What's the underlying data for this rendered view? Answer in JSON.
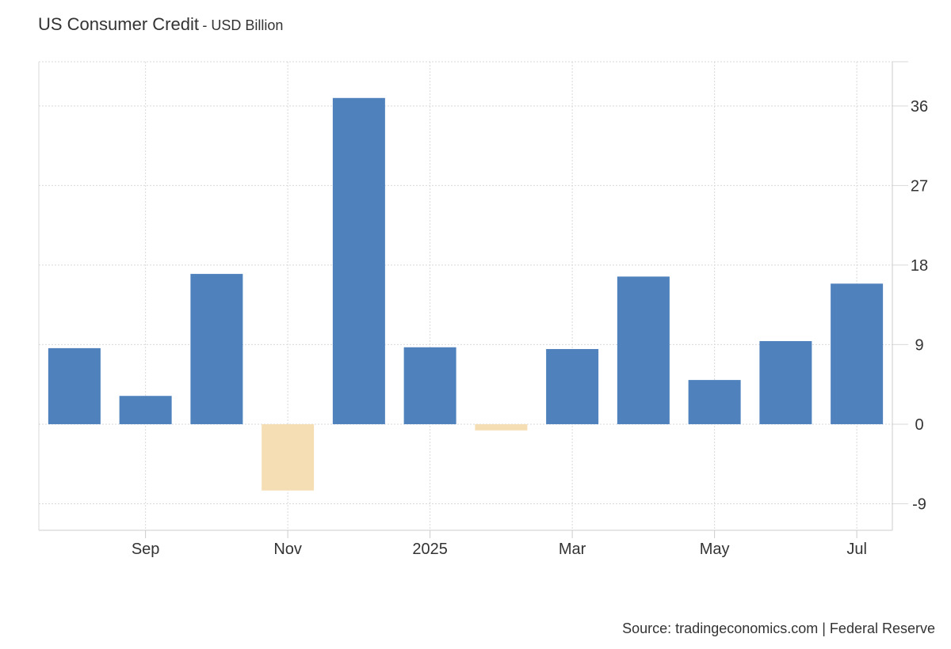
{
  "chart_data": {
    "type": "bar",
    "title": "US Consumer Credit",
    "subtitle": "- USD Billion",
    "categories": [
      "2024-08",
      "2024-09",
      "2024-10",
      "2024-11",
      "2024-12",
      "2025-01",
      "2025-02",
      "2025-03",
      "2025-04",
      "2025-05",
      "2025-06",
      "2025-07"
    ],
    "values": [
      8.6,
      3.2,
      17.0,
      -7.5,
      36.9,
      8.7,
      -0.7,
      8.5,
      16.7,
      5.0,
      9.4,
      15.9
    ],
    "x_tick_labels": [
      {
        "at": "2024-09",
        "label": "Sep"
      },
      {
        "at": "2024-11",
        "label": "Nov"
      },
      {
        "at": "2025-01",
        "label": "2025"
      },
      {
        "at": "2025-03",
        "label": "Mar"
      },
      {
        "at": "2025-05",
        "label": "May"
      },
      {
        "at": "2025-07",
        "label": "Jul"
      }
    ],
    "y_ticks": [
      -9,
      0,
      9,
      18,
      27,
      36
    ],
    "ylim": [
      -12,
      41
    ],
    "xlabel": "",
    "ylabel": "",
    "y_axis_side": "right",
    "grid": true,
    "colors": {
      "positive": "#4f81bd",
      "negative": "#f5deb3",
      "grid": "#d9d9d9",
      "axis": "#cccccc",
      "text": "#333333"
    }
  },
  "source": "Source: tradingeconomics.com | Federal Reserve"
}
